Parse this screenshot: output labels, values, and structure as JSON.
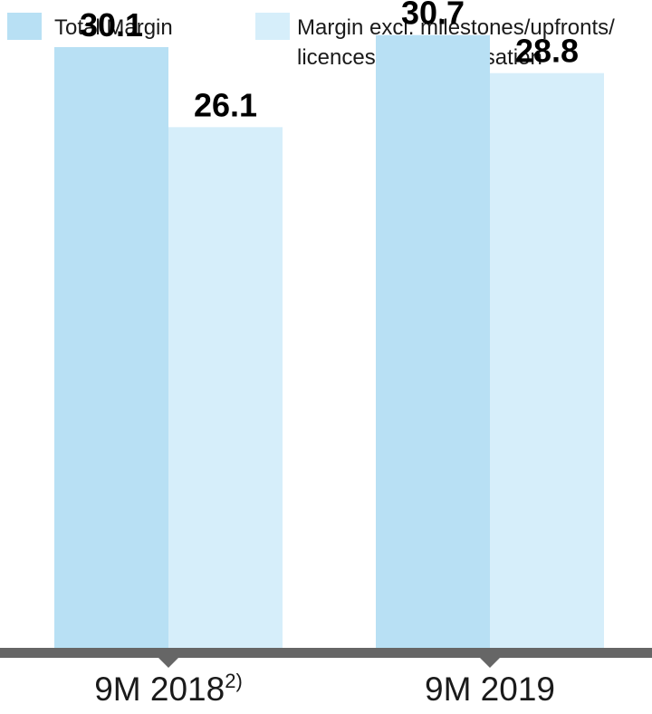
{
  "chart_data": {
    "type": "bar",
    "categories": [
      "9M 2018",
      "9M 2019"
    ],
    "category_superscripts": [
      "2)",
      ""
    ],
    "series": [
      {
        "name": "Total Margin",
        "name_lines": [
          "Total Margin"
        ],
        "color": "#b8e0f4",
        "values": [
          30.1,
          30.7
        ]
      },
      {
        "name": "Margin excl. milestones/upfronts/ licences and amortisation",
        "name_lines": [
          "Margin excl. milestones/upfronts/",
          "licences and amortisation"
        ],
        "color": "#d6eefa",
        "values": [
          26.1,
          28.8
        ]
      }
    ],
    "value_labels": [
      [
        "30.1",
        "30.7"
      ],
      [
        "26.1",
        "28.8"
      ]
    ],
    "ylim": [
      0,
      32
    ],
    "grid": false,
    "legend_position": "top",
    "axis_color": "#666666"
  }
}
